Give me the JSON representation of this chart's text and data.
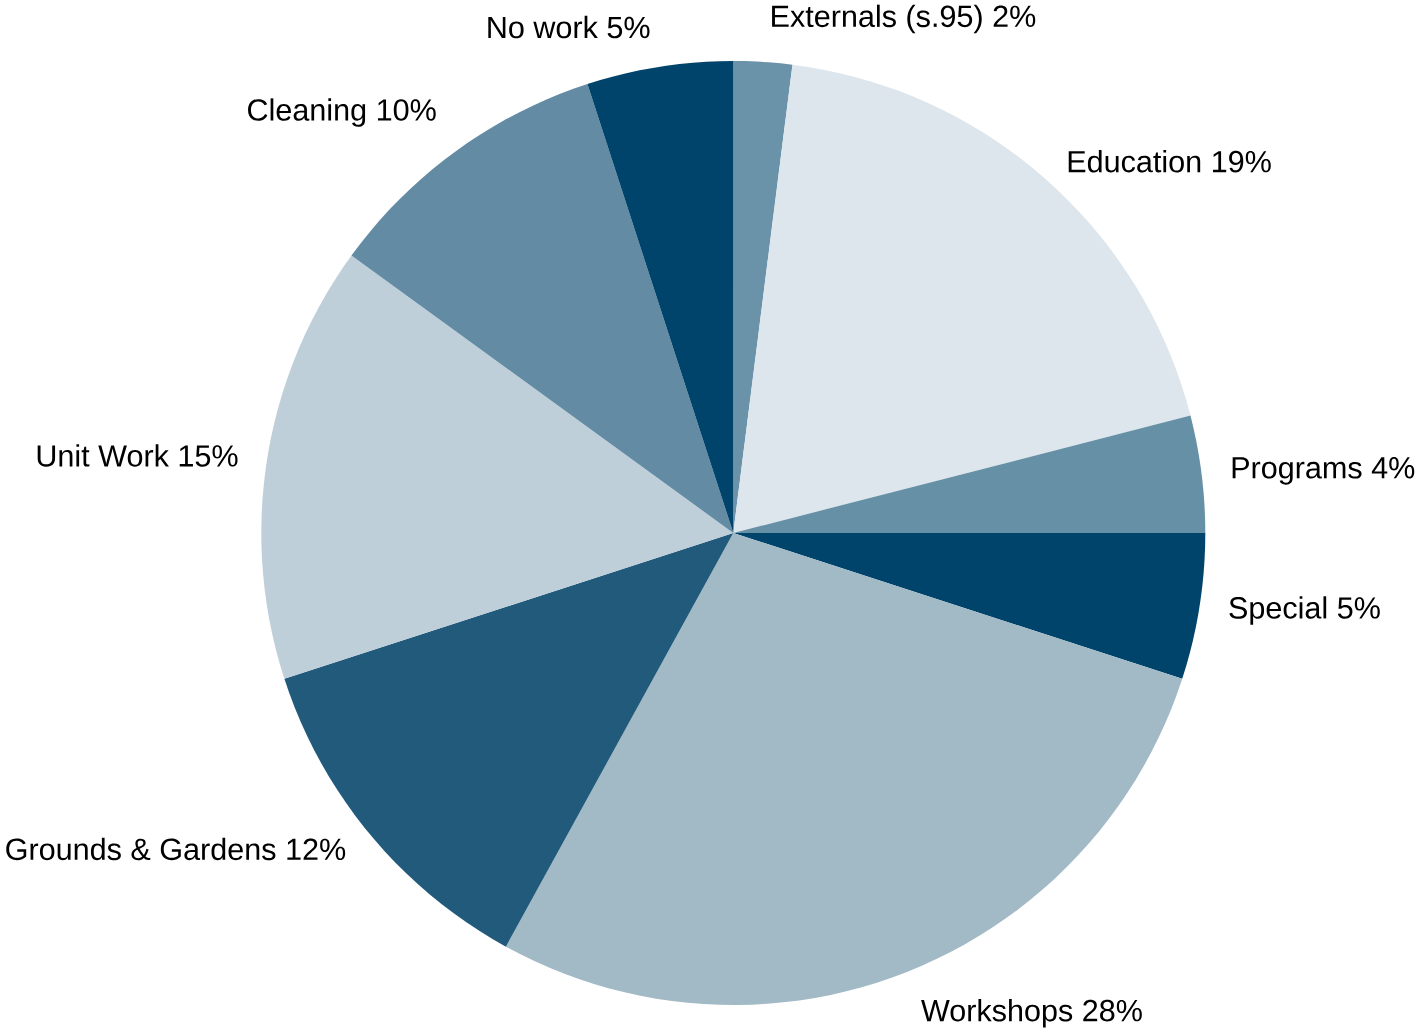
{
  "chart_data": {
    "type": "pie",
    "categories": [
      "Externals (s.95)",
      "Education",
      "Programs",
      "Special",
      "Workshops",
      "Grounds & Gardens",
      "Unit Work",
      "Cleaning",
      "No work"
    ],
    "values": [
      2,
      19,
      4,
      5,
      28,
      12,
      15,
      10,
      5
    ],
    "value_labels": [
      "2%",
      "19%",
      "4%",
      "5%",
      "28%",
      "12%",
      "15%",
      "10%",
      "5%"
    ],
    "colors": [
      "#6a93aa",
      "#dde6ec",
      "#6690a6",
      "#00436b",
      "#a2b9c6",
      "#215a7b",
      "#bfcfda",
      "#638ca4",
      "#00436b"
    ]
  }
}
